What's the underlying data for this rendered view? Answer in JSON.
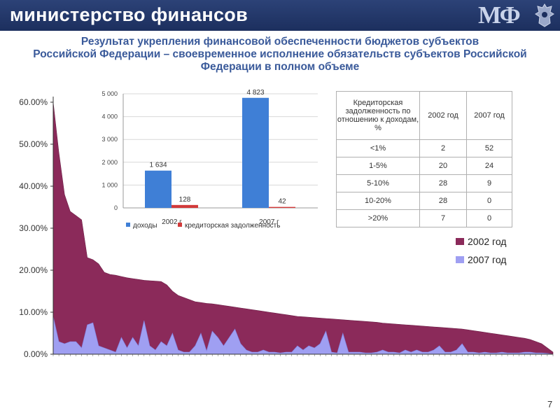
{
  "header": {
    "brand": "министерство финансов",
    "logo": "МФ"
  },
  "title_lines": [
    "Результат укрепления финансовой обеспеченности бюджетов субъектов",
    "Российской Федерации – своевременное исполнение обязательств субъектов Российской",
    "Федерации в полном объеме"
  ],
  "colors": {
    "header_bg": "#23386b",
    "title": "#3a5a9a",
    "area_2002": "#8b2a5a",
    "area_2007": "#9f9ff2",
    "bar_income": "#3f7fd6",
    "bar_debt": "#d23a3a"
  },
  "chart_data": [
    {
      "type": "bar",
      "categories": [
        "2002 г",
        "2007 г"
      ],
      "series": [
        {
          "name": "доходы",
          "values": [
            1634,
            4823
          ],
          "labels": [
            "1 634",
            "4 823"
          ]
        },
        {
          "name": "кредиторская задолженность",
          "values": [
            128,
            42
          ],
          "labels": [
            "128",
            "42"
          ]
        }
      ],
      "ylim": [
        0,
        5000
      ],
      "yticks": [
        0,
        1000,
        2000,
        3000,
        4000,
        5000
      ],
      "ytick_labels": [
        "0",
        "1 000",
        "2 000",
        "3 000",
        "4 000",
        "5 000"
      ],
      "grid": true,
      "legend": "bottom"
    },
    {
      "type": "area",
      "n_points": 89,
      "ylim": [
        0,
        60
      ],
      "yticks": [
        0,
        10,
        20,
        30,
        40,
        50,
        60
      ],
      "ytick_labels": [
        "0.00%",
        "10.00%",
        "20.00%",
        "30.00%",
        "40.00%",
        "50.00%",
        "60.00%"
      ],
      "legend": "right",
      "series": [
        {
          "name": "2002 год",
          "values": [
            60,
            48,
            38,
            34,
            33,
            32,
            23,
            22.5,
            21.5,
            19.5,
            19,
            18.8,
            18.5,
            18.2,
            18,
            17.8,
            17.6,
            17.5,
            17.4,
            17.3,
            16.5,
            15,
            14,
            13.5,
            13,
            12.5,
            12.3,
            12.1,
            12,
            11.8,
            11.6,
            11.4,
            11.2,
            11,
            10.8,
            10.6,
            10.4,
            10.2,
            10,
            9.8,
            9.6,
            9.4,
            9.2,
            9,
            8.9,
            8.8,
            8.7,
            8.6,
            8.5,
            8.4,
            8.3,
            8.2,
            8.1,
            8,
            7.9,
            7.8,
            7.7,
            7.6,
            7.4,
            7.3,
            7.2,
            7.1,
            7,
            6.9,
            6.8,
            6.7,
            6.6,
            6.5,
            6.4,
            6.3,
            6.2,
            6.1,
            6,
            5.8,
            5.6,
            5.4,
            5.2,
            5,
            4.8,
            4.6,
            4.4,
            4.2,
            4,
            3.8,
            3.5,
            3,
            2.5,
            1.5,
            0.5
          ]
        },
        {
          "name": "2007 год",
          "values": [
            9,
            3,
            2.5,
            3,
            3,
            1.5,
            7,
            7.5,
            2,
            1.5,
            1,
            0.5,
            4,
            1.5,
            4,
            2,
            8,
            2,
            1,
            3,
            2,
            5,
            1,
            0.5,
            0.5,
            2,
            5,
            0.8,
            5.5,
            4,
            2,
            4,
            6,
            2.5,
            1,
            0.5,
            0.5,
            1,
            0.5,
            0.5,
            0.3,
            0.5,
            0.5,
            2,
            1,
            2,
            1.5,
            2.5,
            5.5,
            0.5,
            0.3,
            5,
            0.5,
            0.5,
            0.5,
            0.3,
            0.3,
            0.5,
            1,
            0.5,
            0.5,
            0.3,
            1,
            0.5,
            1,
            0.5,
            0.5,
            1,
            2,
            0.5,
            0.5,
            1,
            2.5,
            0.5,
            0.5,
            0.3,
            0.5,
            0.3,
            0.3,
            0.5,
            0.3,
            0.3,
            0.3,
            0.5,
            0.5,
            0.3,
            0.3,
            0.2,
            0
          ]
        }
      ]
    }
  ],
  "table": {
    "headers": [
      "Кредиторская задолженность по отношению к доходам, %",
      "2002 год",
      "2007 год"
    ],
    "rows": [
      [
        "<1%",
        "2",
        "52"
      ],
      [
        "1-5%",
        "20",
        "24"
      ],
      [
        "5-10%",
        "28",
        "9"
      ],
      [
        "10-20%",
        "28",
        "0"
      ],
      [
        ">20%",
        "7",
        "0"
      ]
    ]
  },
  "page_number": "7"
}
